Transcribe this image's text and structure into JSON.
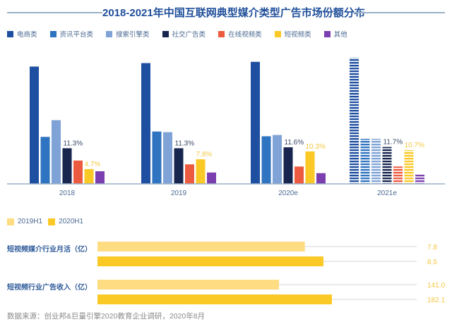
{
  "colors": {
    "title": "#1f4f9a",
    "axis": "#9bb0c6",
    "label_dark": "#3a4a6a",
    "label_yellow": "#f5c842",
    "category_text": "#4c6a92"
  },
  "chart_data": [
    {
      "type": "bar",
      "title": "2018-2021年中国互联网典型媒介类型广告市场份额分布",
      "xlabel": "",
      "ylabel": "",
      "unit": "%",
      "grid": false,
      "legend_position": "top-left",
      "categories": [
        "2018",
        "2019",
        "2020e",
        "2021e"
      ],
      "estimated_categories": [
        "2020e",
        "2021e"
      ],
      "values_note": "Only the printed data labels (social ad and short video) are exact. All other values are estimated from bar heights on an unlabeled axis.",
      "ylim": [
        0,
        42
      ],
      "series": [
        {
          "name": "电商类",
          "color": "#1e4fa0",
          "values": [
            37.2,
            38.3,
            38.7,
            40.0
          ],
          "values_estimated": true
        },
        {
          "name": "资讯平台类",
          "color": "#2f74c0",
          "values": [
            14.9,
            16.6,
            15.1,
            14.3
          ],
          "values_estimated": true
        },
        {
          "name": "搜索引擎类",
          "color": "#7fa3d6",
          "values": [
            20.2,
            16.4,
            15.5,
            14.3
          ],
          "values_estimated": true
        },
        {
          "name": "社交广告类",
          "color": "#17254f",
          "values": [
            11.3,
            11.3,
            11.6,
            11.7
          ],
          "values_estimated": false,
          "labels": [
            "11.3%",
            "11.3%",
            "11.6%",
            "11.7%"
          ],
          "label_color": "#3a4a6a"
        },
        {
          "name": "在线视频类",
          "color": "#ec5b3f",
          "values": [
            7.4,
            6.2,
            5.5,
            5.5
          ],
          "values_estimated": true
        },
        {
          "name": "短视频类",
          "color": "#fbc926",
          "values": [
            4.7,
            7.8,
            10.3,
            10.7
          ],
          "values_estimated": false,
          "labels": [
            "4.7%",
            "7.8%",
            "10.3%",
            "10.7%"
          ],
          "label_color": "#f5c842"
        },
        {
          "name": "其他",
          "color": "#7b3fb0",
          "values": [
            4.0,
            3.6,
            3.4,
            3.2
          ],
          "values_estimated": true
        }
      ]
    },
    {
      "type": "bar",
      "orientation": "horizontal",
      "title": "",
      "legend_position": "top-left",
      "categories": [
        "短视频媒介行业月活（亿）",
        "短视频行业广告收入（亿）"
      ],
      "series": [
        {
          "name": "2019H1",
          "color": "#fddc82",
          "values": [
            7.8,
            141.0
          ],
          "labels": [
            "7.8",
            "141.0"
          ]
        },
        {
          "name": "2020H1",
          "color": "#fbc926",
          "values": [
            8.5,
            182.1
          ],
          "labels": [
            "8.5",
            "182.1"
          ]
        }
      ],
      "value_label_color": "#f5c842",
      "category_label_color": "#2f5b9a"
    }
  ],
  "source": "数据来源：创业邦&巨量引擎2020教育企业调研，2020年8月"
}
